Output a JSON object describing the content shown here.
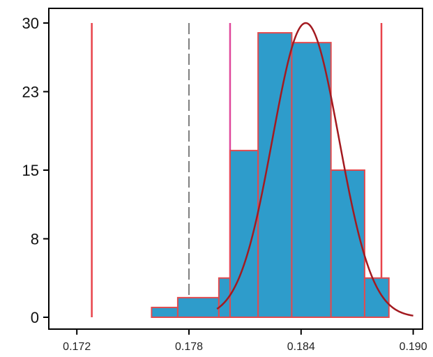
{
  "chart_data": {
    "type": "bar",
    "title": "",
    "xlabel": "",
    "ylabel": "",
    "xlim": [
      0.1705,
      0.1905
    ],
    "ylim": [
      0,
      30
    ],
    "y_ticks": [
      {
        "value": 0,
        "label": "0"
      },
      {
        "value": 8,
        "label": "8"
      },
      {
        "value": 15,
        "label": "15"
      },
      {
        "value": 23,
        "label": "23"
      },
      {
        "value": 30,
        "label": "30"
      }
    ],
    "x_ticks": [
      {
        "value": 0.172,
        "label": "0.172"
      },
      {
        "value": 0.178,
        "label": "0.178"
      },
      {
        "value": 0.184,
        "label": "0.184"
      },
      {
        "value": 0.19,
        "label": "0.190"
      }
    ],
    "bins": [
      {
        "x0": 0.176,
        "x1": 0.1774,
        "count": 1
      },
      {
        "x0": 0.1774,
        "x1": 0.1796,
        "count": 2
      },
      {
        "x0": 0.1796,
        "x1": 0.1802,
        "count": 4
      },
      {
        "x0": 0.1802,
        "x1": 0.1817,
        "count": 17
      },
      {
        "x0": 0.1817,
        "x1": 0.1835,
        "count": 29
      },
      {
        "x0": 0.1835,
        "x1": 0.1856,
        "count": 28
      },
      {
        "x0": 0.1856,
        "x1": 0.1874,
        "count": 15
      },
      {
        "x0": 0.1874,
        "x1": 0.1887,
        "count": 4
      }
    ],
    "normal_curve": {
      "mean": 0.18425,
      "sd": 0.00178,
      "peak": 30,
      "x_start": 0.1795,
      "x_end": 0.19
    },
    "reference_lines": [
      {
        "x": 0.1728,
        "style": "solid",
        "color": "#e8424a",
        "y_top": 30
      },
      {
        "x": 0.178,
        "style": "dashed",
        "color": "#555555",
        "y_top": 30
      },
      {
        "x": 0.1802,
        "style": "solid",
        "color": "#e0479a",
        "y_top": 30
      },
      {
        "x": 0.1883,
        "style": "solid",
        "color": "#e8424a",
        "y_top": 30
      }
    ],
    "colors": {
      "bar_fill": "#2e9ccb",
      "bar_edge": "#e24a4e",
      "curve": "#a31a20",
      "axis": "#000000"
    },
    "grid": false,
    "legend": "none"
  }
}
